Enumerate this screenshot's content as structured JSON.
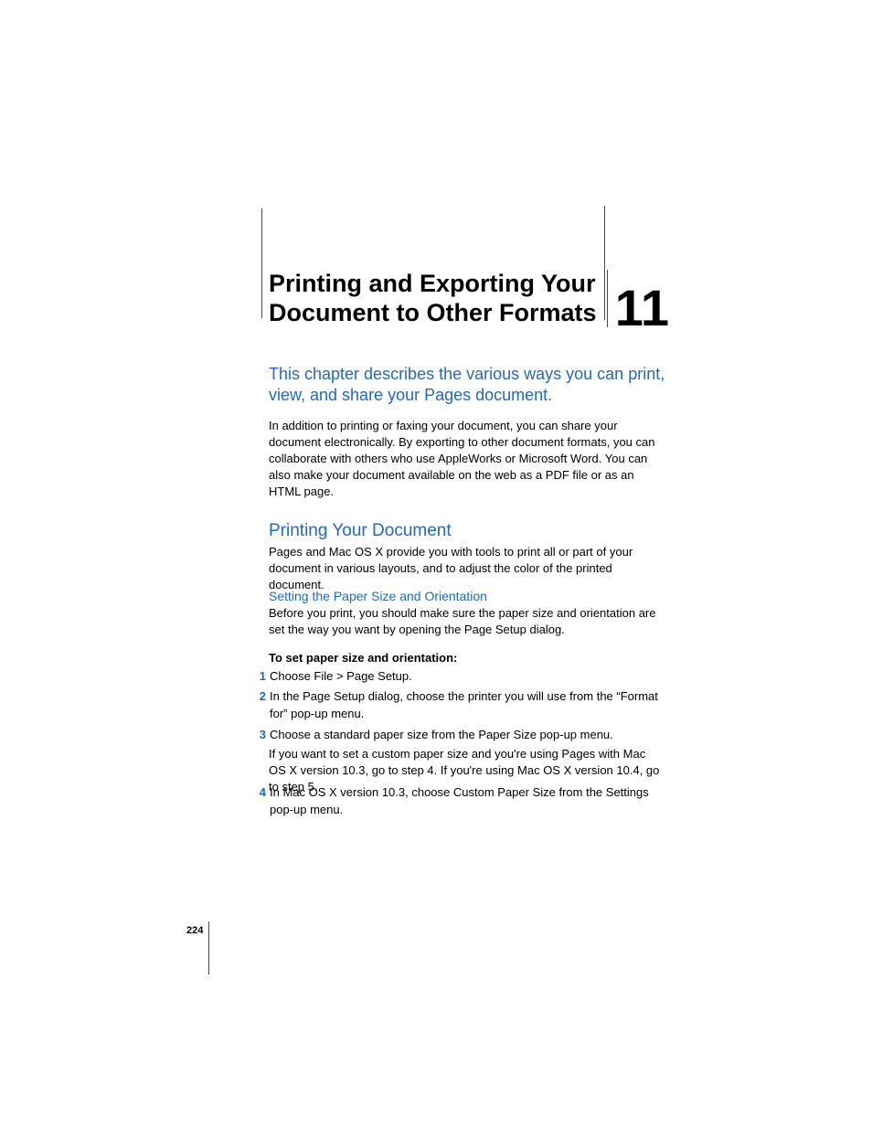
{
  "chapter": {
    "title": "Printing and Exporting Your Document to Other Formats",
    "number": "11"
  },
  "intro": "This chapter describes the various ways you can print, view, and share your Pages document.",
  "paragraph_intro": "In addition to printing or faxing your document, you can share your document electronically. By exporting to other document formats, you can collaborate with others who use AppleWorks or Microsoft Word. You can also make your document available on the web as a PDF file or as an HTML page.",
  "section": {
    "heading": "Printing Your Document",
    "body": "Pages and Mac OS X provide you with tools to print all or part of your document in various layouts, and to adjust the color of the printed document."
  },
  "subsection": {
    "heading": "Setting the Paper Size and Orientation",
    "body": "Before you print, you should make sure the paper size and orientation are set the way you want by opening the Page Setup dialog.",
    "label": "To set paper size and orientation:"
  },
  "steps": [
    {
      "num": "1",
      "text": "Choose File > Page Setup."
    },
    {
      "num": "2",
      "text": "In the Page Setup dialog, choose the printer you will use from the “Format for” pop-up menu."
    },
    {
      "num": "3",
      "text": "Choose a standard paper size from the Paper Size pop-up menu.",
      "followup": "If you want to set a custom paper size and you're using Pages with Mac OS X version 10.3, go to step 4. If you're using Mac OS X version 10.4, go to step 5."
    },
    {
      "num": "4",
      "text": "In Mac OS X version 10.3, choose Custom Paper Size from the Settings pop-up menu."
    }
  ],
  "page_number": "224",
  "colors": {
    "accent": "#2168c6",
    "text": "#000000",
    "background": "#ffffff",
    "rule": "#4a4a4a"
  }
}
